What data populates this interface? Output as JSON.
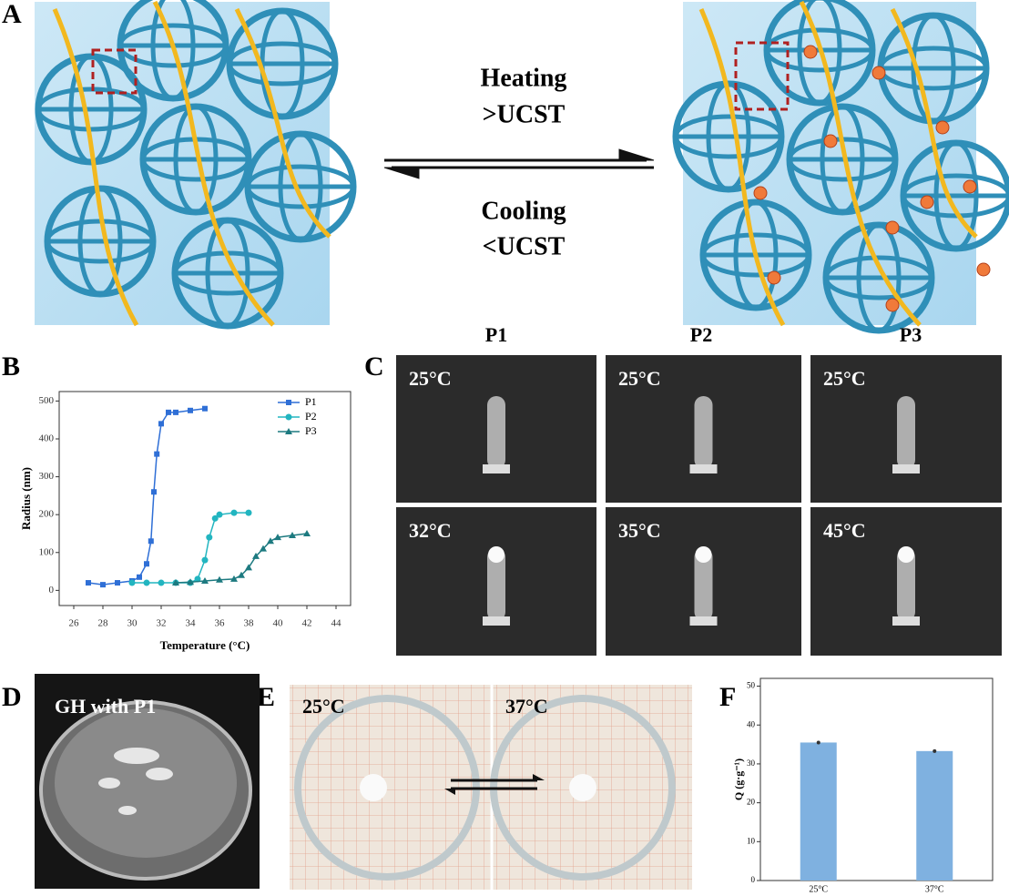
{
  "panel_labels": [
    "A",
    "B",
    "C",
    "D",
    "E",
    "F"
  ],
  "schematic": {
    "heating": "Heating",
    "above": ">UCST",
    "cooling": "Cooling",
    "below": "<UCST"
  },
  "vials": {
    "columns": [
      "P1",
      "P2",
      "P3"
    ],
    "top": [
      "25°C",
      "25°C",
      "25°C"
    ],
    "bottom": [
      "32°C",
      "35°C",
      "45°C"
    ]
  },
  "dish": {
    "label": "GH with P1"
  },
  "swelling": {
    "left": "25°C",
    "right": "37°C"
  },
  "chart_data": [
    {
      "type": "line",
      "x_label": "Temperature (°C)",
      "y_label": "Radius (nm)",
      "xlim": [
        25,
        45
      ],
      "xticks": [
        26,
        28,
        30,
        32,
        34,
        36,
        38,
        40,
        42,
        44
      ],
      "ylim": [
        -40,
        525
      ],
      "yticks": [
        0,
        100,
        200,
        300,
        400,
        500
      ],
      "legend": "upper right",
      "series": [
        {
          "name": "P1",
          "color": "#2f6fd6",
          "marker": "square",
          "x": [
            27,
            28,
            29,
            30,
            30.5,
            31,
            31.3,
            31.5,
            31.7,
            32,
            32.5,
            33,
            34,
            35
          ],
          "values": [
            20,
            15,
            20,
            25,
            35,
            70,
            130,
            260,
            360,
            440,
            470,
            470,
            475,
            480
          ]
        },
        {
          "name": "P2",
          "color": "#22b5c0",
          "marker": "circle",
          "x": [
            30,
            31,
            32,
            33,
            34,
            34.5,
            35,
            35.3,
            35.7,
            36,
            37,
            38
          ],
          "values": [
            20,
            20,
            20,
            20,
            20,
            30,
            80,
            140,
            190,
            200,
            205,
            205
          ]
        },
        {
          "name": "P3",
          "color": "#1d7a80",
          "marker": "triangle",
          "x": [
            33,
            34,
            35,
            36,
            37,
            37.5,
            38,
            38.5,
            39,
            39.5,
            40,
            41,
            42
          ],
          "values": [
            20,
            22,
            25,
            28,
            30,
            40,
            60,
            90,
            110,
            130,
            140,
            145,
            150
          ]
        }
      ]
    },
    {
      "type": "bar",
      "y_label": "Q (g·g⁻¹)",
      "categories": [
        "25°C",
        "37°C"
      ],
      "values": [
        35.5,
        33.3
      ],
      "errors": [
        0.4,
        0.4
      ],
      "color": "#7fb1e0",
      "ylim": [
        0,
        52
      ],
      "yticks": [
        0,
        10,
        20,
        30,
        40,
        50
      ]
    }
  ]
}
